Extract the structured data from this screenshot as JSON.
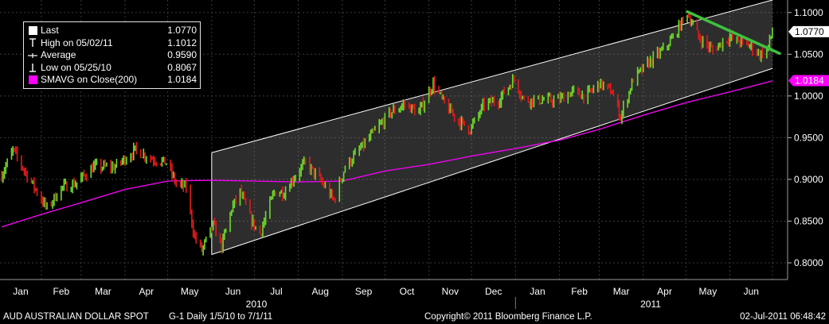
{
  "legend": {
    "last_label": "Last",
    "last_value": "1.0770",
    "high_label": "High on 05/02/11",
    "high_value": "1.1012",
    "avg_label": "Average",
    "avg_value": "0.9590",
    "low_label": "Low on 05/25/10",
    "low_value": "0.8067",
    "smavg_label": "SMAVG on Close(200)",
    "smavg_value": "1.0184",
    "smavg_color": "#ff00ff"
  },
  "footer": {
    "security": "AUD  AUSTRALIAN DOLLAR SPOT",
    "dates": "G-1   Daily  1/5/10 to 7/1/11",
    "copyright": "Copyright© 2011 Bloomberg Finance L.P.",
    "timestamp": "02-Jul-2011 06:48:42"
  },
  "chart_data": {
    "type": "candlestick",
    "ylim": [
      0.78,
      1.115
    ],
    "y_ticks": [
      "0.8000",
      "0.8500",
      "0.9000",
      "0.9500",
      "1.0000",
      "1.0500",
      "1.1000"
    ],
    "x_month_labels": [
      "Jan",
      "Feb",
      "Mar",
      "Apr",
      "May",
      "Jun",
      "Jul",
      "Aug",
      "Sep",
      "Oct",
      "Nov",
      "Dec",
      "Jan",
      "Feb",
      "Mar",
      "Apr",
      "May",
      "Jun"
    ],
    "x_year_labels": [
      "2010",
      "2011"
    ],
    "last_label": "1.0770",
    "smavg_label": "1.0184",
    "colors": {
      "up": "#6ddc2a",
      "down": "#e51a1a",
      "smavg": "#ff00ff",
      "trendline": "#3ec03e",
      "channel": "#ffffff"
    },
    "price_path": [
      [
        "2010-01-04",
        0.905
      ],
      [
        "2010-01-12",
        0.935
      ],
      [
        "2010-01-22",
        0.905
      ],
      [
        "2010-02-05",
        0.865
      ],
      [
        "2010-02-15",
        0.89
      ],
      [
        "2010-02-25",
        0.895
      ],
      [
        "2010-03-10",
        0.915
      ],
      [
        "2010-03-25",
        0.915
      ],
      [
        "2010-04-08",
        0.935
      ],
      [
        "2010-04-20",
        0.925
      ],
      [
        "2010-04-30",
        0.92
      ],
      [
        "2010-05-07",
        0.895
      ],
      [
        "2010-05-14",
        0.89
      ],
      [
        "2010-05-20",
        0.83
      ],
      [
        "2010-05-25",
        0.815
      ],
      [
        "2010-06-02",
        0.845
      ],
      [
        "2010-06-08",
        0.82
      ],
      [
        "2010-06-15",
        0.865
      ],
      [
        "2010-06-21",
        0.885
      ],
      [
        "2010-06-29",
        0.85
      ],
      [
        "2010-07-05",
        0.835
      ],
      [
        "2010-07-15",
        0.885
      ],
      [
        "2010-07-22",
        0.885
      ],
      [
        "2010-07-30",
        0.905
      ],
      [
        "2010-08-06",
        0.92
      ],
      [
        "2010-08-16",
        0.9
      ],
      [
        "2010-08-26",
        0.875
      ],
      [
        "2010-09-03",
        0.915
      ],
      [
        "2010-09-13",
        0.935
      ],
      [
        "2010-09-25",
        0.96
      ],
      [
        "2010-10-05",
        0.98
      ],
      [
        "2010-10-15",
        0.99
      ],
      [
        "2010-10-25",
        0.98
      ],
      [
        "2010-11-04",
        1.015
      ],
      [
        "2010-11-12",
        0.99
      ],
      [
        "2010-11-22",
        0.97
      ],
      [
        "2010-11-30",
        0.96
      ],
      [
        "2010-12-10",
        0.99
      ],
      [
        "2010-12-20",
        0.995
      ],
      [
        "2010-12-31",
        1.02
      ],
      [
        "2011-01-07",
        0.995
      ],
      [
        "2011-01-20",
        0.995
      ],
      [
        "2011-01-31",
        0.995
      ],
      [
        "2011-02-10",
        1.005
      ],
      [
        "2011-02-20",
        1.0
      ],
      [
        "2011-03-01",
        1.015
      ],
      [
        "2011-03-10",
        1.005
      ],
      [
        "2011-03-16",
        0.975
      ],
      [
        "2011-03-25",
        1.02
      ],
      [
        "2011-04-05",
        1.04
      ],
      [
        "2011-04-15",
        1.055
      ],
      [
        "2011-04-22",
        1.07
      ],
      [
        "2011-05-02",
        1.1
      ],
      [
        "2011-05-10",
        1.07
      ],
      [
        "2011-05-20",
        1.055
      ],
      [
        "2011-05-31",
        1.07
      ],
      [
        "2011-06-08",
        1.065
      ],
      [
        "2011-06-15",
        1.06
      ],
      [
        "2011-06-22",
        1.05
      ],
      [
        "2011-06-27",
        1.055
      ],
      [
        "2011-07-01",
        1.077
      ]
    ],
    "smavg_path": [
      [
        "2010-01-04",
        0.843
      ],
      [
        "2010-02-01",
        0.858
      ],
      [
        "2010-03-01",
        0.872
      ],
      [
        "2010-04-01",
        0.888
      ],
      [
        "2010-05-01",
        0.898
      ],
      [
        "2010-06-01",
        0.899
      ],
      [
        "2010-07-01",
        0.898
      ],
      [
        "2010-08-01",
        0.897
      ],
      [
        "2010-09-01",
        0.898
      ],
      [
        "2010-10-01",
        0.91
      ],
      [
        "2010-11-01",
        0.918
      ],
      [
        "2010-12-01",
        0.928
      ],
      [
        "2011-01-01",
        0.937
      ],
      [
        "2011-02-01",
        0.947
      ],
      [
        "2011-03-01",
        0.96
      ],
      [
        "2011-04-01",
        0.977
      ],
      [
        "2011-05-01",
        0.992
      ],
      [
        "2011-06-01",
        1.005
      ],
      [
        "2011-07-01",
        1.018
      ]
    ],
    "channel_upper": [
      [
        "2010-06-01",
        0.932
      ],
      [
        "2011-07-01",
        1.115
      ]
    ],
    "channel_lower": [
      [
        "2010-06-01",
        0.81
      ],
      [
        "2011-07-01",
        1.033
      ]
    ],
    "trendline": [
      [
        "2011-05-02",
        1.101
      ],
      [
        "2011-07-06",
        1.051
      ]
    ]
  }
}
